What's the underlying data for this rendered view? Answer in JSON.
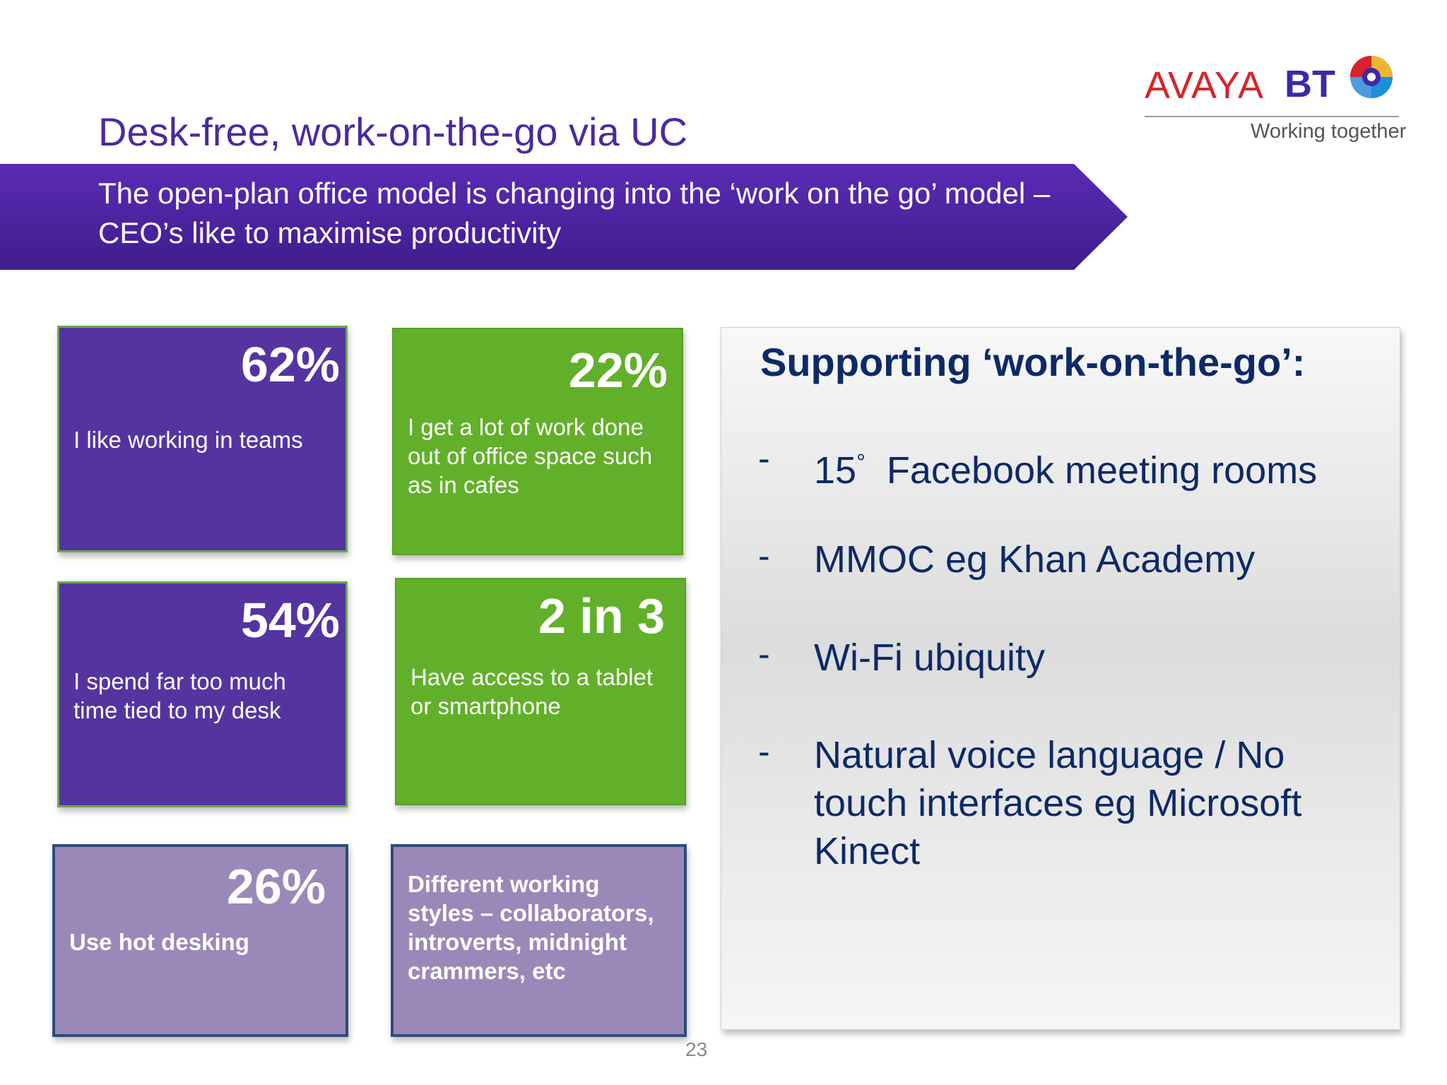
{
  "slide": {
    "title": "Desk-free, work-on-the-go via UC",
    "banner_text": "The open-plan office model is changing into the ‘work on the go’ model – CEO’s like to maximise productivity",
    "page_number": "23"
  },
  "logos": {
    "avaya": "AVAYA",
    "bt": "BT",
    "tagline": "Working together"
  },
  "stats": [
    {
      "value": "62%",
      "label": "I like working in teams"
    },
    {
      "value": "22%",
      "label": "I get a lot of work done out of office space such as in cafes"
    },
    {
      "value": "54%",
      "label": "I spend far too much time tied to my desk"
    },
    {
      "value": "2 in 3",
      "label": "Have access to a tablet or smartphone"
    },
    {
      "value": "26%",
      "label": "Use hot desking"
    },
    {
      "value": "",
      "label": "Different working styles – collaborators, introverts, midnight crammers, etc"
    }
  ],
  "panel": {
    "heading": "Supporting ‘work-on-the-go’:",
    "bullet_marker": "-",
    "bullets": [
      {
        "prefix": "15",
        "superscript": "°",
        "text": "Facebook meeting rooms"
      },
      {
        "text": "MMOC eg Khan Academy"
      },
      {
        "text": "Wi-Fi ubiquity"
      },
      {
        "text": "Natural voice language / No touch interfaces eg Microsoft Kinect"
      }
    ]
  },
  "colors": {
    "title": "#4a2a9e",
    "banner_start": "#4a1f9a",
    "banner_end": "#5b2bb4",
    "purple_box": "#5534a0",
    "green_box": "#62b02a",
    "lilac_box": "#9a89b8",
    "panel_text": "#0d2a66"
  }
}
